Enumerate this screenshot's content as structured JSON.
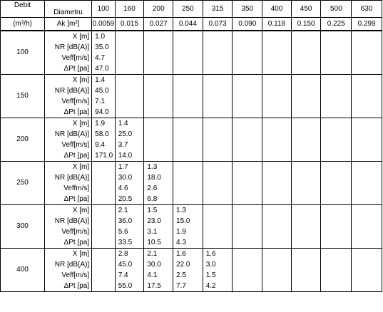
{
  "header": {
    "debit_label": "Debit",
    "unit_label": "(m³/h)",
    "diameter_label": "Diametru",
    "ak_label": "Ak [m²]",
    "diameters": [
      "100",
      "160",
      "200",
      "250",
      "315",
      "350",
      "400",
      "450",
      "500",
      "630"
    ],
    "ak_values": [
      "0.0059",
      "0.015",
      "0.027",
      "0.044",
      "0.073",
      "0.090",
      "0.118",
      "0.150",
      "0.225",
      "0.299"
    ]
  },
  "param_labels": [
    "X [m]",
    "NR [dB(A)]",
    "Veff[m/s]",
    "ΔPt [pa]"
  ],
  "groups": [
    {
      "debit": "100",
      "params": [
        "X [m]",
        "NR [dB(A)]",
        "Veff[m/s]",
        "ΔPt [pa]"
      ],
      "values": [
        [
          "1.0",
          "",
          "",
          "",
          "",
          "",
          "",
          "",
          "",
          ""
        ],
        [
          "35.0",
          "",
          "",
          "",
          "",
          "",
          "",
          "",
          "",
          ""
        ],
        [
          "4.7",
          "",
          "",
          "",
          "",
          "",
          "",
          "",
          "",
          ""
        ],
        [
          "47.0",
          "",
          "",
          "",
          "",
          "",
          "",
          "",
          "",
          ""
        ]
      ]
    },
    {
      "debit": "150",
      "params": [
        "X [m]",
        "NR [dB(A)]",
        "Veff[m/s]",
        "ΔPt [pa]"
      ],
      "values": [
        [
          "1.4",
          "",
          "",
          "",
          "",
          "",
          "",
          "",
          "",
          ""
        ],
        [
          "45.0",
          "",
          "",
          "",
          "",
          "",
          "",
          "",
          "",
          ""
        ],
        [
          "7.1",
          "",
          "",
          "",
          "",
          "",
          "",
          "",
          "",
          ""
        ],
        [
          "94.0",
          "",
          "",
          "",
          "",
          "",
          "",
          "",
          "",
          ""
        ]
      ]
    },
    {
      "debit": "200",
      "params": [
        "X [m]",
        "NR [dB(A)]",
        "Veff[m/s]",
        "ΔPt [pa]"
      ],
      "values": [
        [
          "1.9",
          "1.4",
          "",
          "",
          "",
          "",
          "",
          "",
          "",
          ""
        ],
        [
          "58.0",
          "25.0",
          "",
          "",
          "",
          "",
          "",
          "",
          "",
          ""
        ],
        [
          "9.4",
          "3.7",
          "",
          "",
          "",
          "",
          "",
          "",
          "",
          ""
        ],
        [
          "171.0",
          "14.0",
          "",
          "",
          "",
          "",
          "",
          "",
          "",
          ""
        ]
      ]
    },
    {
      "debit": "250",
      "params": [
        "X [m]",
        "NR [dB(A)]",
        "Veffm/s]",
        "ΔPt [pa]"
      ],
      "values": [
        [
          "",
          "1.7",
          "1.3",
          "",
          "",
          "",
          "",
          "",
          "",
          ""
        ],
        [
          "",
          "30.0",
          "18.0",
          "",
          "",
          "",
          "",
          "",
          "",
          ""
        ],
        [
          "",
          "4.6",
          "2.6",
          "",
          "",
          "",
          "",
          "",
          "",
          ""
        ],
        [
          "",
          "20.5",
          "6.8",
          "",
          "",
          "",
          "",
          "",
          "",
          ""
        ]
      ]
    },
    {
      "debit": "300",
      "params": [
        "X [m]",
        "NR [dB(A)]",
        "Veff[m/s]",
        "ΔPt [pa]"
      ],
      "values": [
        [
          "",
          "2.1",
          "1.5",
          "1.3",
          "",
          "",
          "",
          "",
          "",
          ""
        ],
        [
          "",
          "36.0",
          "23.0",
          "15.0",
          "",
          "",
          "",
          "",
          "",
          ""
        ],
        [
          "",
          "5.6",
          "3.1",
          "1.9",
          "",
          "",
          "",
          "",
          "",
          ""
        ],
        [
          "",
          "33.5",
          "10.5",
          "4.3",
          "",
          "",
          "",
          "",
          "",
          ""
        ]
      ]
    },
    {
      "debit": "400",
      "params": [
        "X [m]",
        "NR [dB(A)]",
        "Veff[m/s]",
        "ΔPt [pa]"
      ],
      "values": [
        [
          "",
          "2.8",
          "2.1",
          "1.6",
          "1.6",
          "",
          "",
          "",
          "",
          ""
        ],
        [
          "",
          "45.0",
          "30.0",
          "22.0",
          "3.0",
          "",
          "",
          "",
          "",
          ""
        ],
        [
          "",
          "7.4",
          "4.1",
          "2.5",
          "1.5",
          "",
          "",
          "",
          "",
          ""
        ],
        [
          "",
          "55.0",
          "17.5",
          "7.7",
          "4.2",
          "",
          "",
          "",
          "",
          ""
        ]
      ]
    }
  ]
}
